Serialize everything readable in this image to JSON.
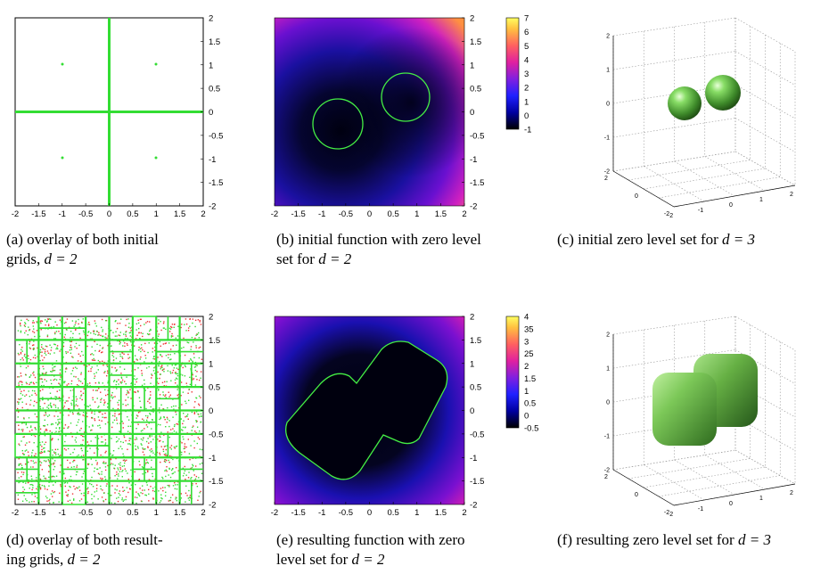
{
  "panels": [
    {
      "id": "a",
      "caption_line1": "(a) overlay of both initial",
      "caption_line2_pre": "grids, ",
      "caption_math": "d = 2"
    },
    {
      "id": "b",
      "caption_line1": "(b) initial function with zero level",
      "caption_line2_pre": "set for ",
      "caption_math": "d = 2"
    },
    {
      "id": "c",
      "caption_line1_pre": "(c) initial zero level set for ",
      "caption_math": "d = 3"
    },
    {
      "id": "d",
      "caption_line1": "(d) overlay of both result-",
      "caption_line2_pre": "ing grids, ",
      "caption_math": "d = 2"
    },
    {
      "id": "e",
      "caption_line1": "(e) resulting function with zero",
      "caption_line2_pre": "level set for ",
      "caption_math": "d = 2"
    },
    {
      "id": "f",
      "caption_line1_pre": "(f) resulting zero level set for ",
      "caption_math": "d = 3"
    }
  ],
  "axis2d": {
    "x_ticks": [
      "-2",
      "-1.5",
      "-1",
      "-0.5",
      "0",
      "0.5",
      "1",
      "1.5",
      "2"
    ],
    "y_ticks": [
      "2",
      "1.5",
      "1",
      "0.5",
      "0",
      "-0.5",
      "-1",
      "-1.5",
      "-2"
    ]
  },
  "colorbar_b": {
    "ticks": [
      "7",
      "6",
      "5",
      "4",
      "3",
      "2",
      "1",
      "0",
      "-1"
    ]
  },
  "colorbar_e": {
    "ticks": [
      "4",
      "35",
      "3",
      "25",
      "2",
      "1.5",
      "1",
      "0.5",
      "0",
      "-0.5"
    ]
  },
  "axis3d": {
    "z_ticks": [
      "2",
      "1",
      "0",
      "-1",
      "-2"
    ],
    "x_ticks": [
      "-2",
      "-1",
      "0",
      "1",
      "2"
    ],
    "y_ticks": [
      "2",
      "0",
      "-2"
    ]
  },
  "colors": {
    "grid_green": "#33dd33",
    "grid_red": "#ee3333",
    "level_set": "#44ee44",
    "surface_green": "#66bb44"
  }
}
